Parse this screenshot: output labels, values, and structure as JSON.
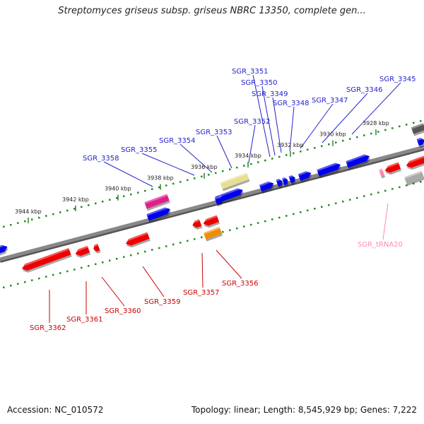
{
  "title": "Streptomyces griseus subsp. griseus NBRC 13350, complete gen...",
  "footer": {
    "accession": "Accession: NC_010572",
    "topology": "Topology: linear; Length: 8,545,929 bp; Genes: 7,222"
  },
  "colors": {
    "forward_gene": "#0000ee",
    "reverse_gene": "#ee0000",
    "trna": "#ff88bb",
    "magenta_feature": "#e0208a",
    "khaki_feature": "#e6df90",
    "orange_feature": "#f08c00",
    "gray_feature": "#aaaaaa",
    "dark_feature": "#555555",
    "backbone": "#888888",
    "tick": "#228b22",
    "forward_label": "#2222cc",
    "reverse_label": "#cc0000",
    "trna_label": "#ff88bb"
  },
  "axis": {
    "ticks": [
      "3944 kbp",
      "3942 kbp",
      "3940 kbp",
      "3938 kbp",
      "3936 kbp",
      "3934 kbp",
      "3932 kbp",
      "3930 kbp",
      "3928 kbp"
    ]
  },
  "labels": {
    "forward": [
      "SGR_3351",
      "SGR_3350",
      "SGR_3349",
      "SGR_3348",
      "SGR_3347",
      "SGR_3346",
      "SGR_3345",
      "SGR_3352",
      "SGR_3353",
      "SGR_3354",
      "SGR_3355",
      "SGR_3358"
    ],
    "reverse": [
      "SGR_3356",
      "SGR_3357",
      "SGR_3359",
      "SGR_3360",
      "SGR_3361",
      "SGR_3362"
    ],
    "trna": [
      "SGR_tRNA20"
    ]
  }
}
